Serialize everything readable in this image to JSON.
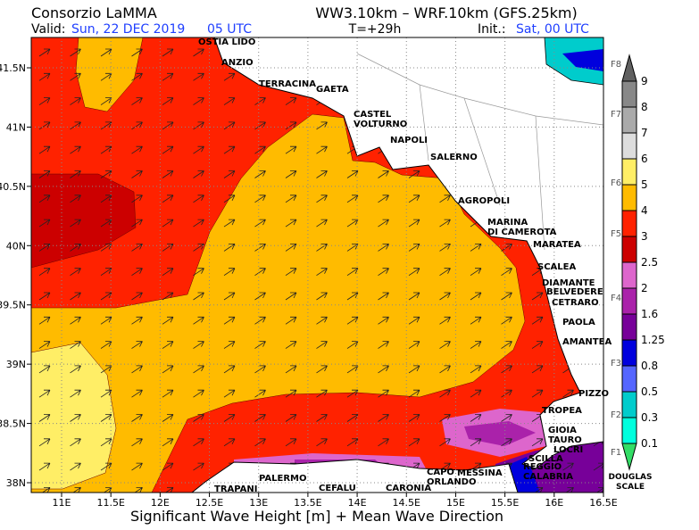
{
  "header": {
    "title": "Consorzio LaMMA",
    "model": "WW3.10km – WRF.10km (GFS.25km)",
    "valid_label": "Valid:",
    "valid_date": "Sun, 22 DEC 2019",
    "valid_time": "05 UTC",
    "lead": "T=+29h",
    "init_label": "Init.:",
    "init_value": "Sat, 00 UTC"
  },
  "map": {
    "lat_ticks": [
      {
        "value": 41.5,
        "label": "41.5N"
      },
      {
        "value": 41,
        "label": "41N"
      },
      {
        "value": 40.5,
        "label": "40.5N"
      },
      {
        "value": 40,
        "label": "40N"
      },
      {
        "value": 39.5,
        "label": "39.5N"
      },
      {
        "value": 39,
        "label": "39N"
      },
      {
        "value": 38.5,
        "label": "38.5N"
      },
      {
        "value": 38,
        "label": "38N"
      }
    ],
    "lon_ticks": [
      {
        "value": 11,
        "label": "11E"
      },
      {
        "value": 11.5,
        "label": "11.5E"
      },
      {
        "value": 12,
        "label": "12E"
      },
      {
        "value": 12.5,
        "label": "12.5E"
      },
      {
        "value": 13,
        "label": "13E"
      },
      {
        "value": 13.5,
        "label": "13.5E"
      },
      {
        "value": 14,
        "label": "14E"
      },
      {
        "value": 14.5,
        "label": "14.5E"
      },
      {
        "value": 15,
        "label": "15E"
      },
      {
        "value": 15.5,
        "label": "15.5E"
      },
      {
        "value": 16,
        "label": "16E"
      },
      {
        "value": 16.5,
        "label": "16.5E"
      }
    ],
    "places": [
      {
        "lines": [
          "OSTIA LIDO"
        ]
      },
      {
        "lines": [
          "ANZIO"
        ]
      },
      {
        "lines": [
          "TERRACINA"
        ]
      },
      {
        "lines": [
          "GAETA"
        ]
      },
      {
        "lines": [
          "CASTEL",
          "VOLTURNO"
        ]
      },
      {
        "lines": [
          "NAPOLI"
        ]
      },
      {
        "lines": [
          "SALERNO"
        ]
      },
      {
        "lines": [
          "AGROPOLI"
        ]
      },
      {
        "lines": [
          "MARINA",
          "DI CAMEROTA"
        ]
      },
      {
        "lines": [
          "MARATEA"
        ]
      },
      {
        "lines": [
          "SCALEA"
        ]
      },
      {
        "lines": [
          "DIAMANTE"
        ]
      },
      {
        "lines": [
          "BELVEDERE"
        ]
      },
      {
        "lines": [
          "CETRARO"
        ]
      },
      {
        "lines": [
          "PAOLA"
        ]
      },
      {
        "lines": [
          "AMANTEA"
        ]
      },
      {
        "lines": [
          "PIZZO"
        ]
      },
      {
        "lines": [
          "TROPEA"
        ]
      },
      {
        "lines": [
          "GIOIA",
          "TAURO"
        ]
      },
      {
        "lines": [
          "LOCRI"
        ]
      },
      {
        "lines": [
          "SCILLA"
        ]
      },
      {
        "lines": [
          "REGGIO",
          "CALABRIA"
        ]
      },
      {
        "lines": [
          "MESSINA"
        ]
      },
      {
        "lines": [
          "CAPO",
          "ORLANDO"
        ]
      },
      {
        "lines": [
          "CEFALU"
        ]
      },
      {
        "lines": [
          "CARONIA"
        ]
      },
      {
        "lines": [
          "PALERMO"
        ]
      },
      {
        "lines": [
          "TRAPANI"
        ]
      }
    ],
    "caption": "Significant Wave Height [m] + Mean Wave Direction"
  },
  "colorbar": {
    "levels": [
      9,
      8,
      7,
      6,
      5,
      4,
      3,
      2.5,
      2,
      1.6,
      1.25,
      0.8,
      0.5,
      0.3,
      0.1
    ],
    "colors": [
      "#606060",
      "#888888",
      "#aaaaaa",
      "#dddddd",
      "#ffee66",
      "#ffbb00",
      "#ff2200",
      "#cc0000",
      "#dd66cc",
      "#aa22aa",
      "#770099",
      "#0000dd",
      "#5566ff",
      "#00cccc",
      "#00ffdd",
      "#33dd66"
    ],
    "force_labels": [
      "F8",
      "F7",
      "F6",
      "F5",
      "F4",
      "F3",
      "F2",
      "F1"
    ],
    "scale_label": [
      "DOUGLAS",
      "SCALE"
    ]
  }
}
